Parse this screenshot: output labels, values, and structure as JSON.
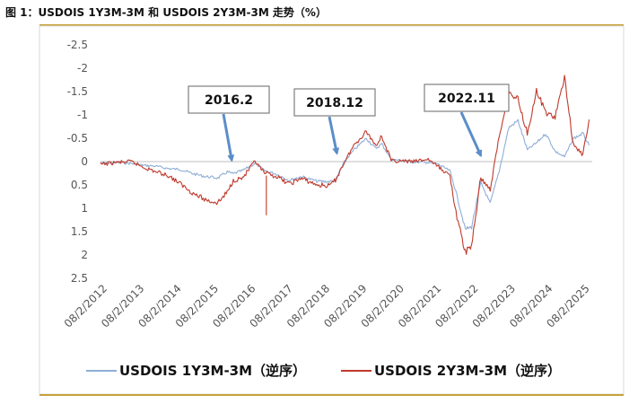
{
  "title": "图 1：USDOIS 1Y3M-3M 和 USDOIS 2Y3M-3M 走势（%）",
  "chart_data": {
    "type": "line",
    "y_axis": {
      "reversed": true,
      "ylim": [
        -2.5,
        2.5
      ],
      "ticks": [
        "-2.5",
        "-2",
        "-1.5",
        "-1",
        "-0.5",
        "0",
        "0.5",
        "1",
        "1.5",
        "2",
        "2.5"
      ]
    },
    "x_axis": {
      "range": [
        "2012-08-02",
        "2025-11-01"
      ],
      "tick_labels": [
        "08/2/2012",
        "08/2/2013",
        "08/2/2014",
        "08/2/2015",
        "08/2/2016",
        "08/2/2017",
        "08/2/2018",
        "08/2/2019",
        "08/2/2020",
        "08/2/2021",
        "08/2/2022",
        "08/2/2023",
        "08/2/2024",
        "08/2/2025"
      ]
    },
    "grid": false,
    "legend_position": "bottom",
    "series": [
      {
        "name": "USDOIS 1Y3M-3M（逆序）",
        "color": "#8EAED6",
        "points": [
          [
            "2012-08-02",
            0.04
          ],
          [
            "2013-01-01",
            0.02
          ],
          [
            "2013-06-01",
            0.04
          ],
          [
            "2013-10-01",
            0.08
          ],
          [
            "2014-02-01",
            0.1
          ],
          [
            "2014-06-01",
            0.15
          ],
          [
            "2014-10-01",
            0.17
          ],
          [
            "2015-02-01",
            0.26
          ],
          [
            "2015-06-01",
            0.32
          ],
          [
            "2015-10-01",
            0.35
          ],
          [
            "2016-01-01",
            0.22
          ],
          [
            "2016-03-01",
            0.26
          ],
          [
            "2016-06-01",
            0.19
          ],
          [
            "2016-10-01",
            0.04
          ],
          [
            "2017-01-01",
            0.19
          ],
          [
            "2017-05-01",
            0.27
          ],
          [
            "2017-09-01",
            0.4
          ],
          [
            "2018-01-01",
            0.32
          ],
          [
            "2018-06-01",
            0.42
          ],
          [
            "2018-10-01",
            0.43
          ],
          [
            "2018-12-01",
            0.4
          ],
          [
            "2019-03-01",
            0.0
          ],
          [
            "2019-06-01",
            -0.25
          ],
          [
            "2019-10-01",
            -0.5
          ],
          [
            "2020-01-01",
            -0.28
          ],
          [
            "2020-03-01",
            -0.38
          ],
          [
            "2020-06-01",
            -0.05
          ],
          [
            "2021-01-01",
            0.01
          ],
          [
            "2021-06-01",
            0.02
          ],
          [
            "2021-09-01",
            0.05
          ],
          [
            "2022-01-01",
            0.2
          ],
          [
            "2022-03-01",
            0.65
          ],
          [
            "2022-06-01",
            1.45
          ],
          [
            "2022-08-01",
            1.4
          ],
          [
            "2022-11-01",
            0.45
          ],
          [
            "2023-02-01",
            0.9
          ],
          [
            "2023-05-01",
            0.2
          ],
          [
            "2023-08-01",
            -0.72
          ],
          [
            "2023-11-01",
            -0.88
          ],
          [
            "2024-02-01",
            -0.25
          ],
          [
            "2024-05-01",
            -0.4
          ],
          [
            "2024-08-01",
            -0.6
          ],
          [
            "2024-11-01",
            -0.22
          ],
          [
            "2025-02-01",
            -0.1
          ],
          [
            "2025-05-01",
            -0.5
          ],
          [
            "2025-08-01",
            -0.6
          ],
          [
            "2025-10-01",
            -0.35
          ]
        ]
      },
      {
        "name": "USDOIS 2Y3M-3M（逆序）",
        "color": "#C0392B",
        "points": [
          [
            "2012-08-02",
            0.06
          ],
          [
            "2013-01-01",
            0.02
          ],
          [
            "2013-06-01",
            0.0
          ],
          [
            "2013-10-01",
            0.12
          ],
          [
            "2014-02-01",
            0.22
          ],
          [
            "2014-06-01",
            0.3
          ],
          [
            "2014-10-01",
            0.48
          ],
          [
            "2015-02-01",
            0.68
          ],
          [
            "2015-06-01",
            0.82
          ],
          [
            "2015-10-01",
            0.88
          ],
          [
            "2016-01-01",
            0.66
          ],
          [
            "2016-03-01",
            0.4
          ],
          [
            "2016-06-01",
            0.35
          ],
          [
            "2016-10-01",
            0.0
          ],
          [
            "2017-01-01",
            0.25
          ],
          [
            "2017-05-01",
            0.32
          ],
          [
            "2017-09-01",
            0.48
          ],
          [
            "2018-01-01",
            0.36
          ],
          [
            "2018-06-01",
            0.5
          ],
          [
            "2018-10-01",
            0.52
          ],
          [
            "2018-12-01",
            0.4
          ],
          [
            "2019-03-01",
            0.0
          ],
          [
            "2019-06-01",
            -0.35
          ],
          [
            "2019-10-01",
            -0.65
          ],
          [
            "2020-01-01",
            -0.35
          ],
          [
            "2020-03-01",
            -0.55
          ],
          [
            "2020-06-01",
            -0.02
          ],
          [
            "2021-01-01",
            0.0
          ],
          [
            "2021-06-01",
            -0.05
          ],
          [
            "2021-09-01",
            0.1
          ],
          [
            "2022-01-01",
            0.3
          ],
          [
            "2022-03-01",
            1.1
          ],
          [
            "2022-06-01",
            1.95
          ],
          [
            "2022-08-01",
            1.8
          ],
          [
            "2022-11-01",
            0.35
          ],
          [
            "2023-02-01",
            0.6
          ],
          [
            "2023-05-01",
            -0.55
          ],
          [
            "2023-08-01",
            -1.45
          ],
          [
            "2023-11-01",
            -1.35
          ],
          [
            "2024-02-01",
            -0.6
          ],
          [
            "2024-05-01",
            -1.5
          ],
          [
            "2024-08-01",
            -1.05
          ],
          [
            "2024-11-01",
            -0.95
          ],
          [
            "2025-02-01",
            -1.8
          ],
          [
            "2025-05-01",
            -0.35
          ],
          [
            "2025-08-01",
            -0.15
          ],
          [
            "2025-10-01",
            -0.9
          ]
        ]
      }
    ],
    "annotations": [
      {
        "label": "2016.2",
        "date": "2016-02-15",
        "target_y": 0.05
      },
      {
        "label": "2018.12",
        "date": "2018-12-15",
        "target_y": -0.1
      },
      {
        "label": "2022.11",
        "date": "2022-11-01",
        "target_y": -0.05
      }
    ]
  }
}
